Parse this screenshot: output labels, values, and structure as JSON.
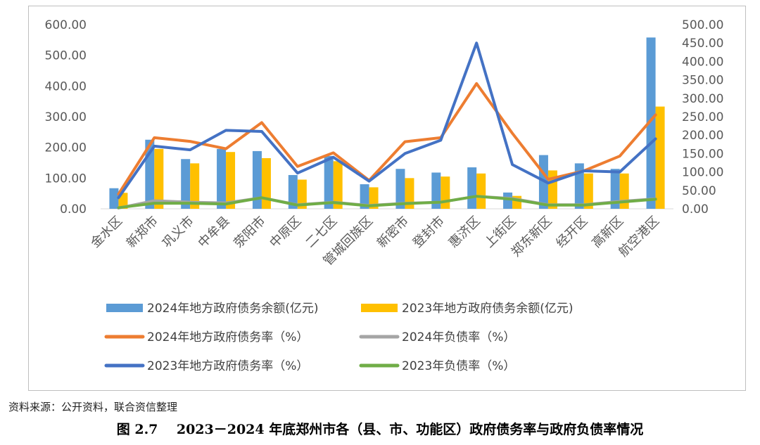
{
  "chart_data": {
    "type": "bar",
    "categories": [
      "金水区",
      "新郑市",
      "巩义市",
      "中牟县",
      "荥阳市",
      "中原区",
      "二七区",
      "管城回族区",
      "新密市",
      "登封市",
      "惠济区",
      "上街区",
      "郑东新区",
      "经开区",
      "高新区",
      "航空港区"
    ],
    "left_axis": {
      "min": 0,
      "max": 600,
      "ticks": [
        "0.00",
        "100.00",
        "200.00",
        "300.00",
        "400.00",
        "500.00",
        "600.00"
      ]
    },
    "right_axis": {
      "min": 0,
      "max": 500,
      "ticks": [
        "0.00",
        "50.00",
        "100.00",
        "150.00",
        "200.00",
        "250.00",
        "300.00",
        "350.00",
        "400.00",
        "450.00",
        "500.00"
      ]
    },
    "bar_series": [
      {
        "name": "2024年地方政府债务余额(亿元)",
        "color": "#5b9bd5",
        "axis": "left",
        "values": [
          67,
          225,
          162,
          195,
          188,
          110,
          172,
          80,
          130,
          118,
          135,
          53,
          175,
          148,
          130,
          558
        ]
      },
      {
        "name": "2023年地方政府债务余额(亿元)",
        "color": "#ffc000",
        "axis": "left",
        "values": [
          52,
          195,
          148,
          185,
          165,
          95,
          155,
          70,
          100,
          105,
          115,
          42,
          125,
          115,
          115,
          333
        ]
      }
    ],
    "line_series": [
      {
        "name": "2024年地方政府债务率（%）",
        "color": "#ed7d31",
        "axis": "right",
        "values": [
          40,
          193,
          183,
          163,
          234,
          115,
          152,
          77,
          182,
          193,
          340,
          205,
          80,
          103,
          143,
          255
        ]
      },
      {
        "name": "2024年负债率（%）",
        "color": "#a5a5a5",
        "axis": "right",
        "values": [
          2,
          22,
          18,
          16,
          30,
          11,
          18,
          9,
          15,
          18,
          34,
          28,
          11,
          11,
          20,
          27
        ]
      },
      {
        "name": "2023年地方政府债务率（%）",
        "color": "#4472c4",
        "axis": "right",
        "values": [
          30,
          170,
          160,
          213,
          210,
          97,
          140,
          75,
          150,
          186,
          450,
          120,
          70,
          103,
          100,
          190
        ]
      },
      {
        "name": "2023年负债率（%）",
        "color": "#70ad47",
        "axis": "right",
        "values": [
          3,
          15,
          15,
          13,
          30,
          10,
          17,
          8,
          14,
          18,
          34,
          26,
          10,
          10,
          18,
          26
        ]
      }
    ]
  },
  "source": "资料来源：公开资料，联合资信整理",
  "caption": "图 2.7    2023－2024 年底郑州市各（县、市、功能区）政府债务率与政府负债率情况"
}
